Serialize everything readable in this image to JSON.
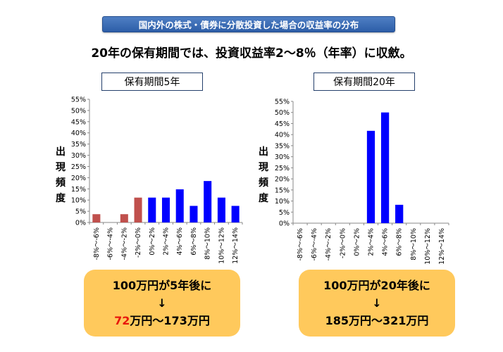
{
  "banner": "国内外の株式・債券に分散投資した場合の収益率の分布",
  "subtitle": "20年の保有期間では、投資収益率2～8％（年率）に収斂。",
  "ylabel_chars": [
    "出",
    "現",
    "頻",
    "度"
  ],
  "colors": {
    "negative": "#c0504d",
    "positive": "#0000ff",
    "box_fill": "#ffc95c",
    "banner": "#3d6db5",
    "highlight": "#e8170c"
  },
  "chart_data": [
    {
      "type": "bar",
      "title": "保有期間5年",
      "ylabel": "出現頻度",
      "categories": [
        "-8%～-6%",
        "-6%～-4%",
        "-4%～-2%",
        "-2%～0%",
        "0%～2%",
        "2%～4%",
        "4%～6%",
        "6%～8%",
        "8%～10%",
        "10%～12%",
        "12%～14%"
      ],
      "values": [
        3.7,
        0,
        3.7,
        11.1,
        11.1,
        11.1,
        14.8,
        7.4,
        18.5,
        11.1,
        7.4
      ],
      "bar_colors": [
        "#c0504d",
        "#c0504d",
        "#c0504d",
        "#c0504d",
        "#0000ff",
        "#0000ff",
        "#0000ff",
        "#0000ff",
        "#0000ff",
        "#0000ff",
        "#0000ff"
      ],
      "ylim": [
        0,
        55
      ],
      "yticks": [
        "0%",
        "5%",
        "10%",
        "15%",
        "20%",
        "25%",
        "30%",
        "35%",
        "40%",
        "45%",
        "50%",
        "55%"
      ],
      "grid": false
    },
    {
      "type": "bar",
      "title": "保有期間20年",
      "ylabel": "出現頻度",
      "categories": [
        "-8%～-6%",
        "-6%～-4%",
        "-4%～-2%",
        "-2%～0%",
        "0%～2%",
        "2%～4%",
        "4%～6%",
        "6%～8%",
        "8%～10%",
        "10%～12%",
        "12%～14%"
      ],
      "values": [
        0,
        0,
        0,
        0,
        0,
        41.7,
        50.0,
        8.3,
        0,
        0,
        0
      ],
      "bar_colors": [
        "#0000ff",
        "#0000ff",
        "#0000ff",
        "#0000ff",
        "#0000ff",
        "#0000ff",
        "#0000ff",
        "#0000ff",
        "#0000ff",
        "#0000ff",
        "#0000ff"
      ],
      "ylim": [
        0,
        55
      ],
      "yticks": [
        "0%",
        "5%",
        "10%",
        "15%",
        "20%",
        "25%",
        "30%",
        "35%",
        "40%",
        "45%",
        "50%",
        "55%"
      ],
      "grid": false
    }
  ],
  "results": [
    {
      "line1": "100万円が5年後に",
      "arrow": "↓",
      "low": "72",
      "rest": "万円～173万円"
    },
    {
      "line1": "100万円が20年後に",
      "arrow": "↓",
      "low": "",
      "rest": "185万円～321万円"
    }
  ]
}
